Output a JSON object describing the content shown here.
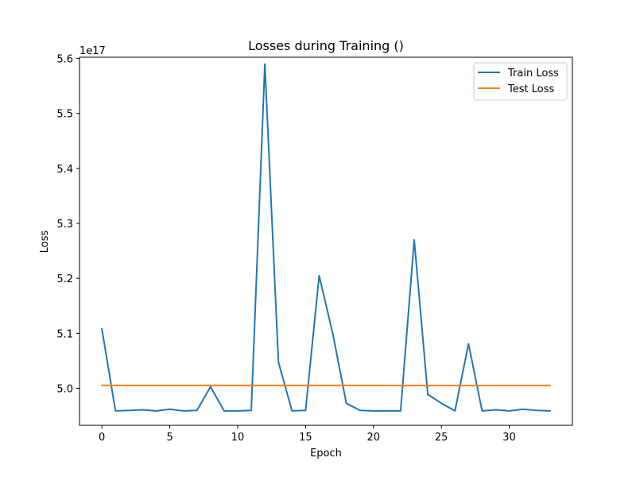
{
  "chart_data": {
    "type": "line",
    "title": "Losses during Training ()",
    "xlabel": "Epoch",
    "ylabel": "Loss",
    "y_offset_label": "1e17",
    "y_scale_factor": 1e+17,
    "xlim": [
      -1.65,
      34.65
    ],
    "ylim": [
      4.9328,
      5.6022
    ],
    "x_ticks": [
      0,
      5,
      10,
      15,
      20,
      25,
      30
    ],
    "y_ticks": [
      5.0,
      5.1,
      5.2,
      5.3,
      5.4,
      5.5,
      5.6
    ],
    "grid": false,
    "legend_position": "top-right",
    "x": [
      0,
      1,
      2,
      3,
      4,
      5,
      6,
      7,
      8,
      9,
      10,
      11,
      12,
      13,
      14,
      15,
      16,
      17,
      18,
      19,
      20,
      21,
      22,
      23,
      24,
      25,
      26,
      27,
      28,
      29,
      30,
      31,
      32,
      33
    ],
    "series": [
      {
        "name": "Train Loss",
        "color": "#1f77b4",
        "values": [
          5.108,
          4.959,
          4.96,
          4.961,
          4.959,
          4.962,
          4.959,
          4.96,
          5.003,
          4.959,
          4.959,
          4.96,
          5.59,
          5.048,
          4.959,
          4.96,
          5.205,
          5.1,
          4.973,
          4.96,
          4.959,
          4.959,
          4.959,
          5.27,
          4.989,
          4.973,
          4.959,
          5.081,
          4.959,
          4.961,
          4.959,
          4.962,
          4.96,
          4.959
        ]
      },
      {
        "name": "Test Loss",
        "color": "#ff7f0e",
        "values": [
          5.0055,
          5.0055,
          5.0055,
          5.0055,
          5.0055,
          5.0055,
          5.0055,
          5.0055,
          5.0055,
          5.0055,
          5.0055,
          5.0055,
          5.0054,
          5.0054,
          5.0054,
          5.0054,
          5.0054,
          5.0054,
          5.0054,
          5.0054,
          5.0054,
          5.0054,
          5.0053,
          5.0053,
          5.0053,
          5.0053,
          5.0053,
          5.0053,
          5.0053,
          5.0052,
          5.0052,
          5.0052,
          5.0052,
          5.0052
        ]
      }
    ]
  }
}
